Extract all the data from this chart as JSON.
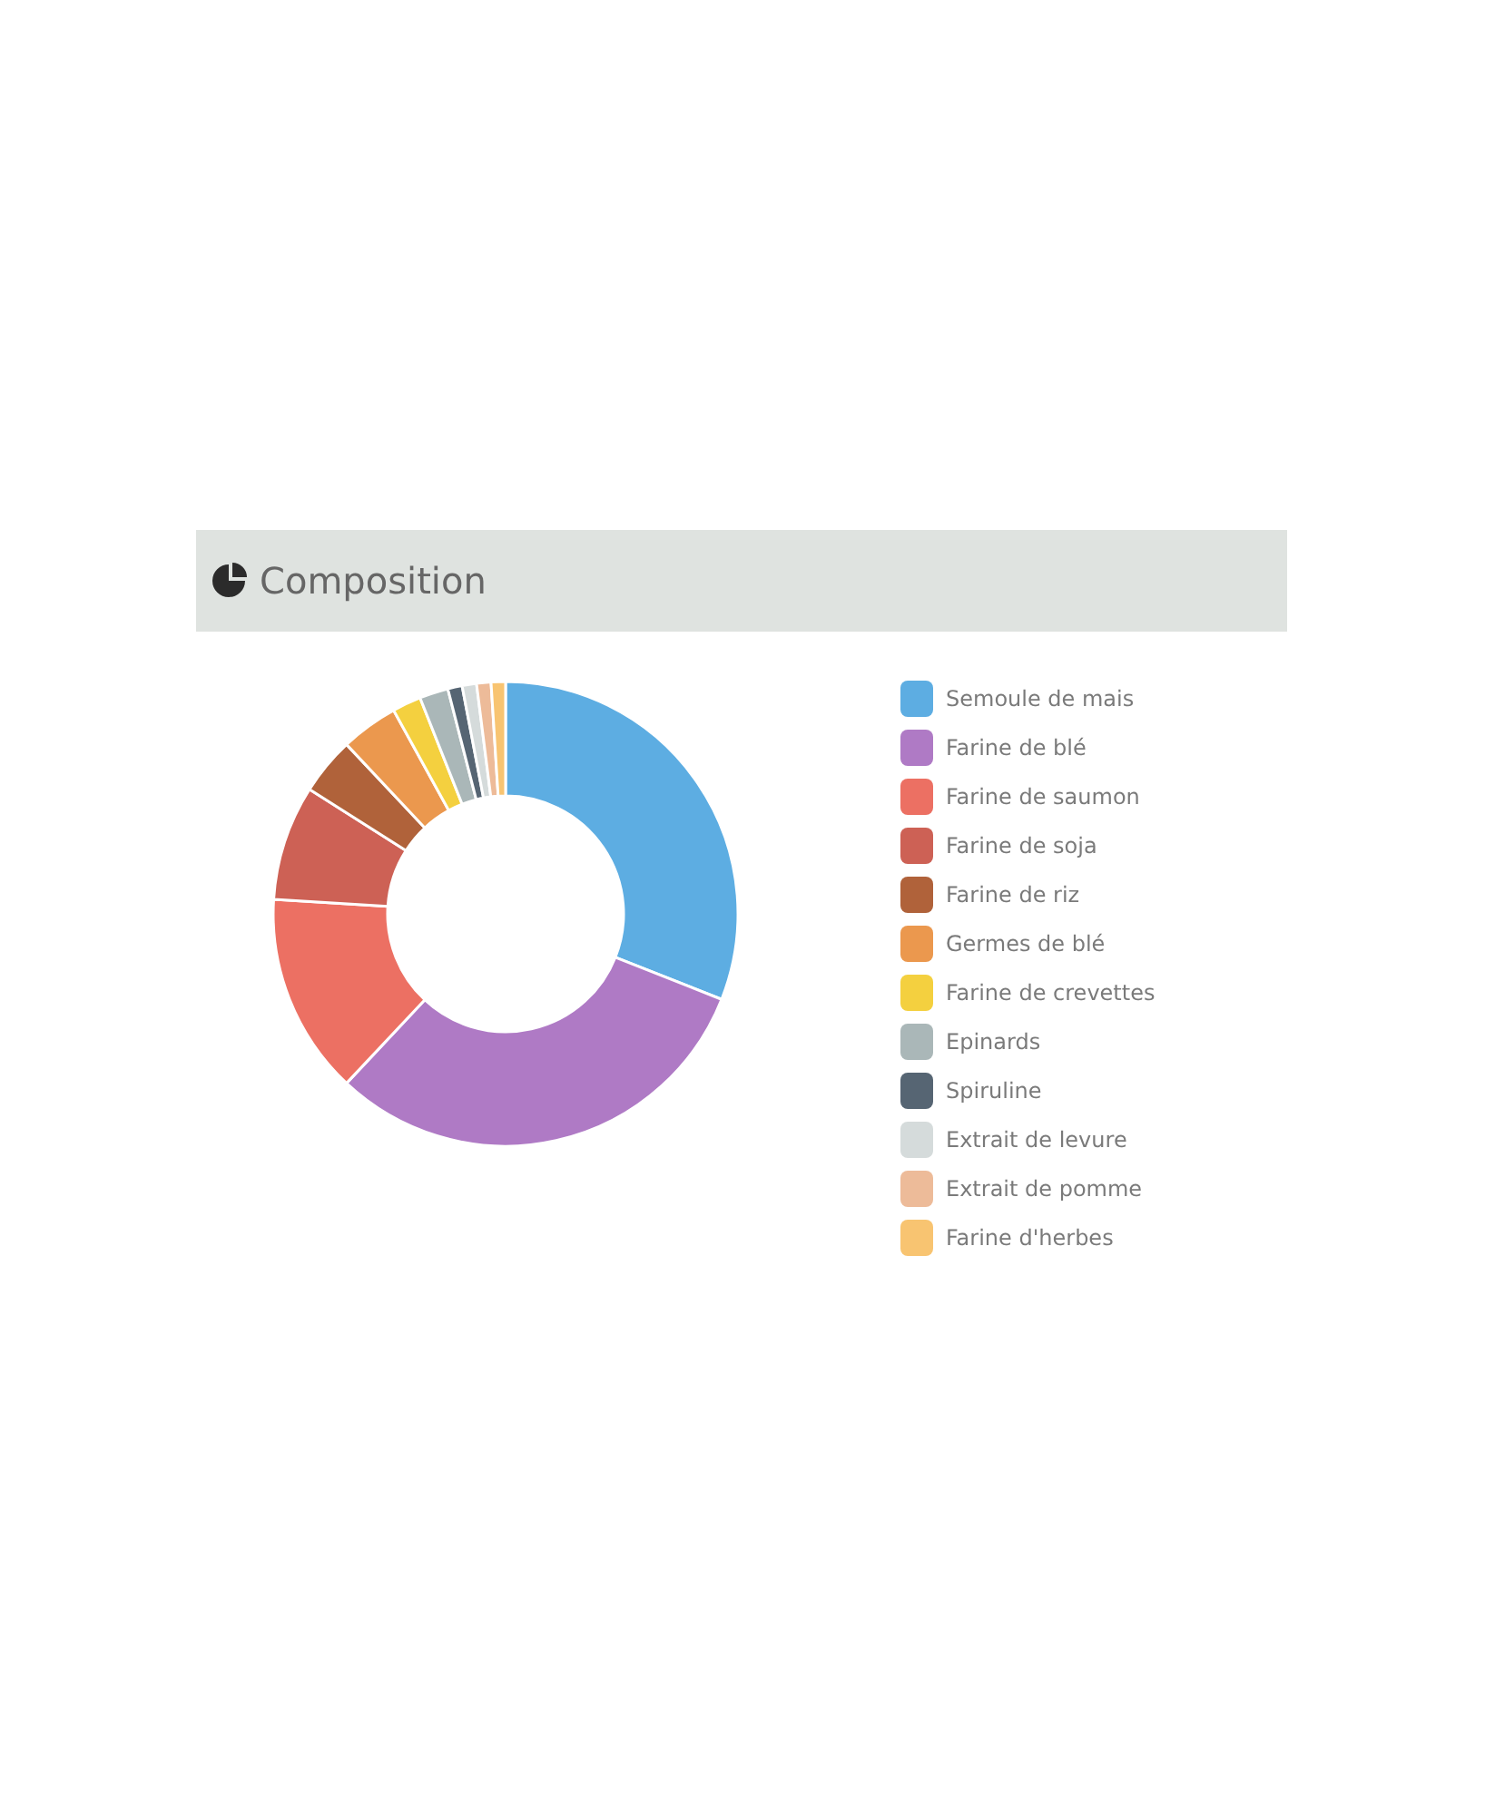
{
  "chart_data": {
    "type": "donut",
    "title": "Composition",
    "categories": [
      "Semoule de mais",
      "Farine de blé",
      "Farine de saumon",
      "Farine de soja",
      "Farine de riz",
      "Germes de blé",
      "Farine de crevettes",
      "Epinards",
      "Spiruline",
      "Extrait de levure",
      "Extrait de pomme",
      "Farine d'herbes"
    ],
    "values": [
      31,
      31,
      14,
      8,
      4,
      4,
      2,
      2,
      1,
      1,
      1,
      1
    ],
    "colors": [
      "#5dade2",
      "#af7ac5",
      "#ec7063",
      "#cd6155",
      "#b0623a",
      "#eb984e",
      "#f4d03f",
      "#aab7b8",
      "#566573",
      "#d5dbdb",
      "#edbb99",
      "#f8c471"
    ],
    "legend": "right"
  }
}
